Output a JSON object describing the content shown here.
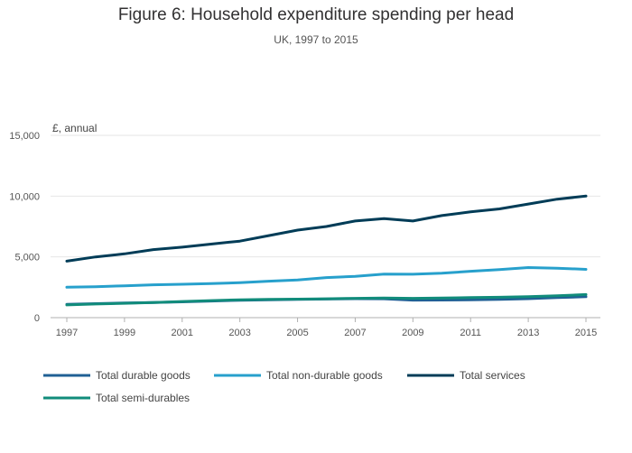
{
  "header": {
    "title": "Figure 6: Household expenditure spending per head",
    "subtitle": "UK, 1997 to 2015"
  },
  "chart_data": {
    "type": "line",
    "title": "Figure 6: Household expenditure spending per head",
    "subtitle": "UK, 1997 to 2015",
    "ylabel": "£, annual",
    "xlabel": "",
    "x": [
      1997,
      1998,
      1999,
      2000,
      2001,
      2002,
      2003,
      2004,
      2005,
      2006,
      2007,
      2008,
      2009,
      2010,
      2011,
      2012,
      2013,
      2014,
      2015
    ],
    "xticks": [
      "1997",
      "1999",
      "2001",
      "2003",
      "2005",
      "2007",
      "2009",
      "2011",
      "2013",
      "2015"
    ],
    "yticks": [
      "0",
      "5,000",
      "10,000",
      "15,000"
    ],
    "ylim": [
      0,
      15000
    ],
    "grid": true,
    "legend_position": "bottom",
    "series": [
      {
        "name": "Total durable goods",
        "color": "#206095",
        "values": [
          1100,
          1150,
          1200,
          1250,
          1300,
          1370,
          1430,
          1460,
          1500,
          1530,
          1560,
          1550,
          1440,
          1450,
          1460,
          1500,
          1560,
          1650,
          1720
        ]
      },
      {
        "name": "Total non-durable goods",
        "color": "#27a0cc",
        "values": [
          2500,
          2550,
          2620,
          2700,
          2750,
          2800,
          2880,
          3000,
          3100,
          3300,
          3400,
          3580,
          3570,
          3650,
          3820,
          3950,
          4120,
          4070,
          3970
        ]
      },
      {
        "name": "Total services",
        "color": "#003c57",
        "values": [
          4650,
          5000,
          5250,
          5600,
          5800,
          6050,
          6300,
          6750,
          7200,
          7500,
          7950,
          8150,
          7950,
          8400,
          8700,
          8950,
          9350,
          9750,
          10000
        ]
      },
      {
        "name": "Total semi-durables",
        "color": "#118c7b",
        "values": [
          1050,
          1120,
          1180,
          1250,
          1330,
          1400,
          1470,
          1500,
          1520,
          1550,
          1590,
          1610,
          1590,
          1620,
          1650,
          1680,
          1720,
          1800,
          1900
        ]
      }
    ]
  }
}
